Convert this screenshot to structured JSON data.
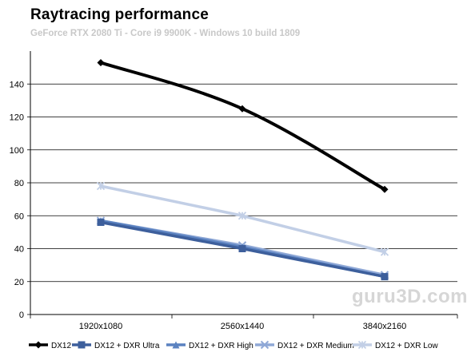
{
  "header": {
    "title": "Raytracing  performance",
    "subtitle": "GeForce RTX 2080 Ti - Core i9 9900K - Windows 10 build 1809"
  },
  "watermark": "guru3D.com",
  "chart_data": {
    "type": "line",
    "title": "Raytracing  performance",
    "subtitle": "GeForce RTX 2080 Ti - Core i9 9900K - Windows 10 build 1809",
    "xlabel": "",
    "ylabel": "",
    "categories": [
      "1920x1080",
      "2560x1440",
      "3840x2160"
    ],
    "ylim": [
      0,
      160
    ],
    "yticks": [
      0,
      20,
      40,
      60,
      80,
      100,
      120,
      140
    ],
    "grid": true,
    "legend_position": "bottom",
    "series": [
      {
        "name": "DX12",
        "values": [
          153,
          125,
          76
        ],
        "color": "#000000",
        "marker": "diamond"
      },
      {
        "name": "DX12 + DXR Ultra",
        "values": [
          56,
          40,
          23
        ],
        "color": "#3d5f9c",
        "marker": "square"
      },
      {
        "name": "DX12 + DXR High",
        "values": [
          57,
          41,
          23
        ],
        "color": "#5b82c0",
        "marker": "triangle"
      },
      {
        "name": "DX12 + DXR Medium",
        "values": [
          57,
          42,
          24
        ],
        "color": "#8fa8d6",
        "marker": "x"
      },
      {
        "name": "DX12 + DXR Low",
        "values": [
          78,
          60,
          38
        ],
        "color": "#c2cfe6",
        "marker": "star"
      }
    ]
  }
}
